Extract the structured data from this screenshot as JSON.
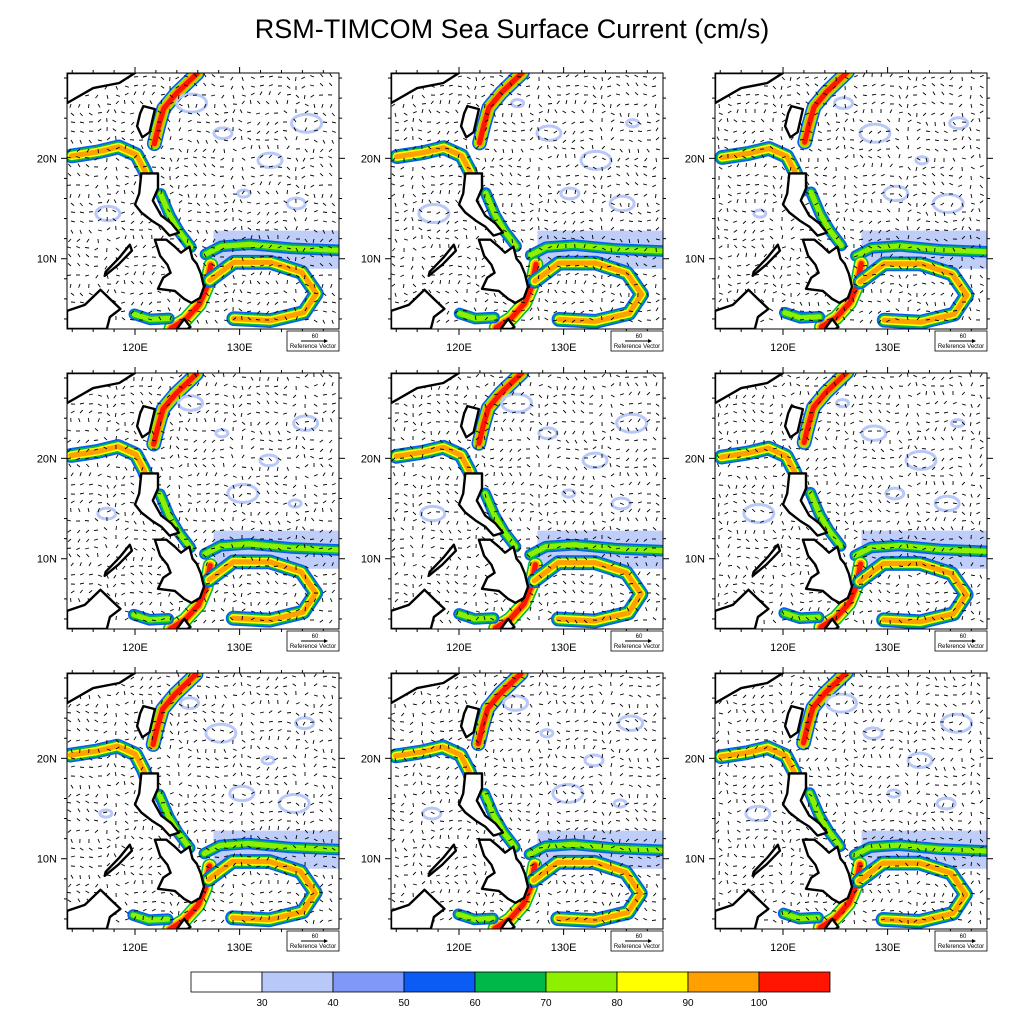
{
  "title": "RSM-TIMCOM Sea Surface Current (cm/s)",
  "panels": [
    {
      "id": 1
    },
    {
      "id": 2
    },
    {
      "id": 3
    },
    {
      "id": 4
    },
    {
      "id": 5
    },
    {
      "id": 6
    },
    {
      "id": 7
    },
    {
      "id": 8
    },
    {
      "id": 9
    }
  ],
  "map_extent": {
    "lon": [
      113.5,
      139.5
    ],
    "lat": [
      3,
      28.5
    ]
  },
  "lon_ticks": [
    {
      "value": 120,
      "label": "120E"
    },
    {
      "value": 130,
      "label": "130E"
    }
  ],
  "lat_ticks": [
    {
      "value": 20,
      "label": "20N"
    },
    {
      "value": 10,
      "label": "10N"
    }
  ],
  "reference_vector": {
    "value": "60",
    "label": "Reference Vector"
  },
  "colorbar": {
    "levels": [
      "30",
      "40",
      "50",
      "60",
      "70",
      "80",
      "90",
      "100"
    ],
    "colors": [
      "#ffffff",
      "#b8c8f8",
      "#8098f8",
      "#0a5cf5",
      "#00b84a",
      "#8ef000",
      "#ffff00",
      "#ffa000",
      "#ff1500"
    ]
  },
  "legend_placement": "bottom"
}
